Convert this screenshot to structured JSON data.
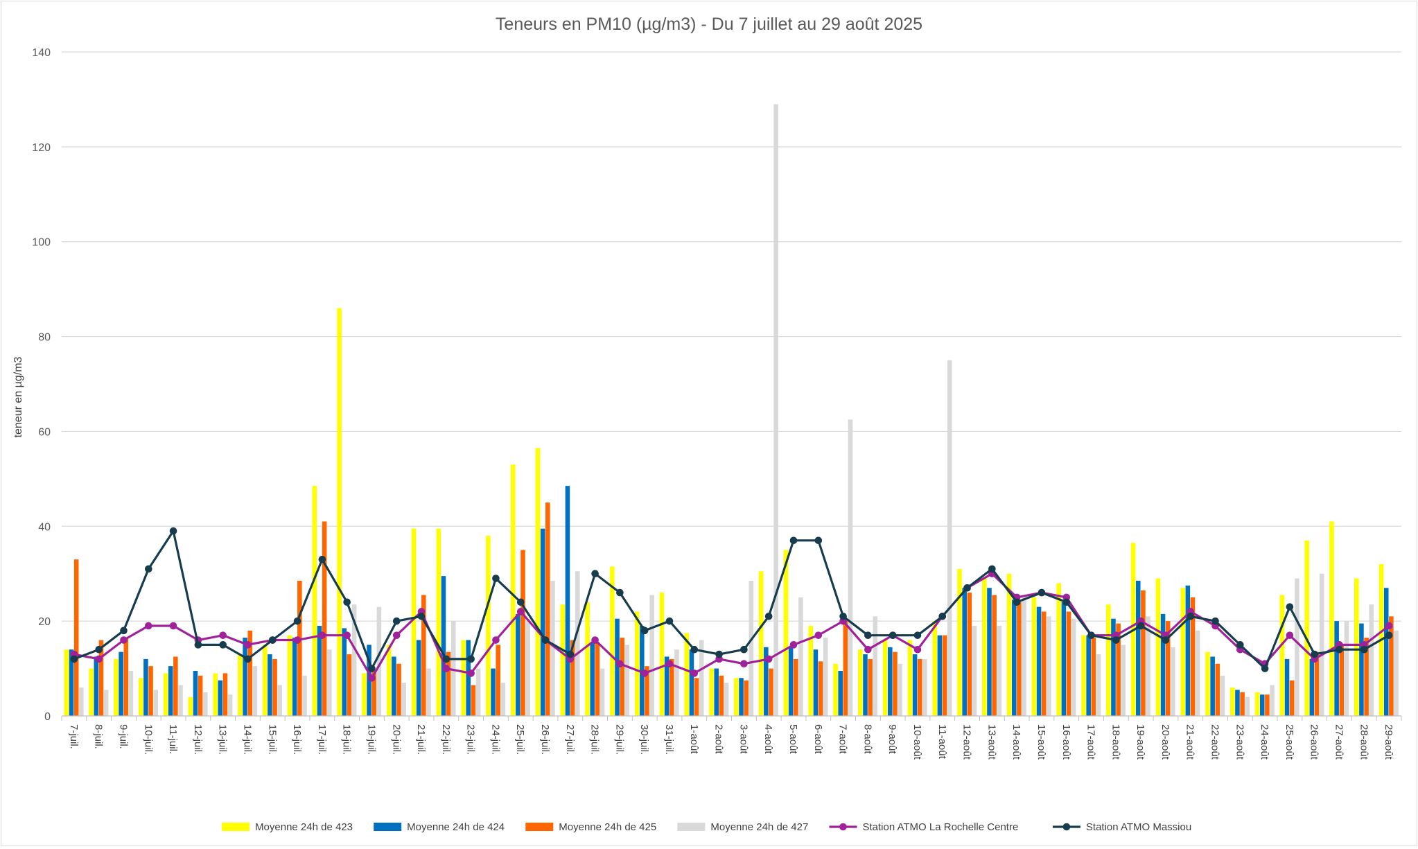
{
  "chart_data": {
    "type": "bar",
    "title": "Teneurs en PM10 (µg/m3) - Du 7 juillet au 29 août 2025",
    "xlabel": "",
    "ylabel": "teneur en µg/m3",
    "ylim": [
      0,
      140
    ],
    "yticks": [
      0,
      20,
      40,
      60,
      80,
      100,
      120,
      140
    ],
    "grid": true,
    "legend": "bottom",
    "categories": [
      "7-juil.",
      "8-juil.",
      "9-juil.",
      "10-juil.",
      "11-juil.",
      "12-juil.",
      "13-juil.",
      "14-juil.",
      "15-juil.",
      "16-juil.",
      "17-juil.",
      "18-juil.",
      "19-juil.",
      "20-juil.",
      "21-juil.",
      "22-juil.",
      "23-juil.",
      "24-juil.",
      "25-juil.",
      "26-juil.",
      "27-juil.",
      "28-juil.",
      "29-juil.",
      "30-juil.",
      "31-juil.",
      "1-août",
      "2-août",
      "3-août",
      "4-août",
      "5-août",
      "6-août",
      "7-août",
      "8-août",
      "9-août",
      "10-août",
      "11-août",
      "12-août",
      "13-août",
      "14-août",
      "15-août",
      "16-août",
      "17-août",
      "18-août",
      "19-août",
      "20-août",
      "21-août",
      "22-août",
      "23-août",
      "24-août",
      "25-août",
      "26-août",
      "27-août",
      "28-août",
      "29-août"
    ],
    "series": [
      {
        "name": "Moyenne 24h de 423",
        "kind": "bar",
        "color": "#ffff00",
        "values": [
          14,
          10,
          12,
          8,
          9,
          4,
          9,
          13,
          15,
          17,
          48.5,
          86,
          9,
          15,
          39.5,
          39.5,
          16,
          38,
          53,
          56.5,
          23.5,
          24,
          31.5,
          22,
          26,
          17.5,
          10,
          8,
          30.5,
          35,
          19,
          11,
          14,
          16,
          16,
          20,
          31,
          29,
          30,
          25,
          28,
          17,
          23.5,
          36.5,
          29,
          27,
          13.5,
          6,
          5,
          25.5,
          37,
          41,
          29,
          32
        ]
      },
      {
        "name": "Moyenne 24h de 424",
        "kind": "bar",
        "color": "#0070c0",
        "values": [
          14,
          12.5,
          13.5,
          12,
          10.5,
          9.5,
          7.5,
          16.5,
          13,
          16.5,
          19,
          18.5,
          15,
          12.5,
          16,
          29.5,
          16,
          10,
          21.5,
          39.5,
          48.5,
          15.5,
          20.5,
          19,
          12.5,
          14,
          10,
          8,
          14.5,
          14.5,
          14,
          9.5,
          13,
          14.5,
          13,
          17,
          27,
          27,
          24.5,
          23,
          24,
          17,
          20.5,
          28.5,
          21.5,
          27.5,
          12.5,
          5.5,
          4.5,
          12,
          12,
          20,
          19.5,
          27
        ]
      },
      {
        "name": "Moyenne 24h de 425",
        "kind": "bar",
        "color": "#ff6600",
        "values": [
          33,
          16,
          16.5,
          10.5,
          12.5,
          8.5,
          9,
          18,
          12,
          28.5,
          41,
          13,
          9.5,
          11,
          25.5,
          13.5,
          6.5,
          15,
          35,
          45,
          16,
          15.5,
          16.5,
          10.5,
          12,
          8,
          8.5,
          7.5,
          10,
          12,
          11.5,
          20,
          12,
          13.5,
          12,
          17,
          26,
          25.5,
          24,
          22,
          22,
          16.5,
          19.5,
          26.5,
          20,
          25,
          11,
          5,
          4.5,
          7.5,
          13.5,
          15,
          16.5,
          21
        ]
      },
      {
        "name": "Moyenne 24h de 427",
        "kind": "bar",
        "color": "#d9d9d9",
        "values": [
          6,
          5.5,
          9.5,
          5.5,
          6.5,
          5,
          4.5,
          10.5,
          6.5,
          8.5,
          14,
          23.5,
          23,
          7,
          10,
          20,
          10,
          7,
          20,
          28.5,
          30.5,
          10,
          15,
          25.5,
          14,
          16,
          7,
          28.5,
          129,
          25,
          16.5,
          62.5,
          21,
          11,
          12,
          75,
          19,
          19,
          25,
          21,
          20.5,
          13,
          15,
          21,
          14.5,
          18,
          8.5,
          4,
          6.5,
          29,
          30,
          20,
          23.5,
          18
        ]
      },
      {
        "name": "Station ATMO La Rochelle Centre",
        "kind": "line",
        "color": "#a0229a",
        "values": [
          13,
          12,
          16,
          19,
          19,
          16,
          17,
          15,
          16,
          16,
          17,
          17,
          8,
          17,
          22,
          10,
          9,
          16,
          22,
          16,
          12,
          16,
          11,
          9,
          11,
          9,
          12,
          11,
          12,
          15,
          17,
          20,
          14,
          17,
          14,
          21,
          27,
          30,
          25,
          26,
          25,
          17,
          17,
          20,
          17,
          22,
          19,
          14,
          11,
          17,
          12,
          15,
          15,
          19
        ]
      },
      {
        "name": "Station ATMO Massiou",
        "kind": "line",
        "color": "#163c4e",
        "values": [
          12,
          14,
          18,
          31,
          39,
          15,
          15,
          12,
          16,
          20,
          33,
          24,
          10,
          20,
          21,
          12,
          12,
          29,
          24,
          16,
          13,
          30,
          26,
          18,
          20,
          14,
          13,
          14,
          21,
          37,
          37,
          21,
          17,
          17,
          17,
          21,
          27,
          31,
          24,
          26,
          24,
          17,
          16,
          19,
          16,
          21,
          20,
          15,
          10,
          23,
          13,
          14,
          14,
          17
        ]
      }
    ]
  }
}
